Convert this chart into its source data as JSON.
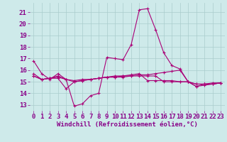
{
  "xlabel": "Windchill (Refroidissement éolien,°C)",
  "bg_color": "#ceeaea",
  "grid_color": "#aacccc",
  "line_color": "#aa0077",
  "ylim": [
    12.5,
    21.8
  ],
  "xlim": [
    -0.5,
    23.5
  ],
  "yticks": [
    13,
    14,
    15,
    16,
    17,
    18,
    19,
    20,
    21
  ],
  "xticks": [
    0,
    1,
    2,
    3,
    4,
    5,
    6,
    7,
    8,
    9,
    10,
    11,
    12,
    13,
    14,
    15,
    16,
    17,
    18,
    19,
    20,
    21,
    22,
    23
  ],
  "series": {
    "line1": [
      16.8,
      15.7,
      15.2,
      15.7,
      15.2,
      12.9,
      13.1,
      13.8,
      14.0,
      17.1,
      17.0,
      16.9,
      18.2,
      21.2,
      21.3,
      19.5,
      17.5,
      16.4,
      16.1,
      15.0,
      14.6,
      14.8,
      14.9,
      14.9
    ],
    "line2": [
      15.7,
      15.2,
      15.3,
      15.3,
      14.4,
      15.0,
      15.1,
      15.2,
      15.3,
      15.4,
      15.5,
      15.5,
      15.6,
      15.7,
      15.1,
      15.1,
      15.1,
      15.1,
      15.0,
      15.0,
      14.6,
      14.7,
      14.8,
      14.9
    ],
    "line3": [
      15.5,
      15.2,
      15.3,
      15.5,
      15.2,
      15.1,
      15.2,
      15.2,
      15.3,
      15.4,
      15.4,
      15.5,
      15.5,
      15.6,
      15.6,
      15.7,
      15.8,
      15.9,
      16.0,
      15.0,
      14.8,
      14.8,
      14.8,
      14.9
    ],
    "line4": [
      15.5,
      15.2,
      15.3,
      15.4,
      15.2,
      15.0,
      15.1,
      15.2,
      15.3,
      15.4,
      15.4,
      15.4,
      15.5,
      15.5,
      15.5,
      15.5,
      15.0,
      15.0,
      15.0,
      15.0,
      14.8,
      14.8,
      14.8,
      14.9
    ]
  },
  "tick_fontsize": 6.5,
  "xlabel_fontsize": 6.5,
  "label_color": "#880088"
}
